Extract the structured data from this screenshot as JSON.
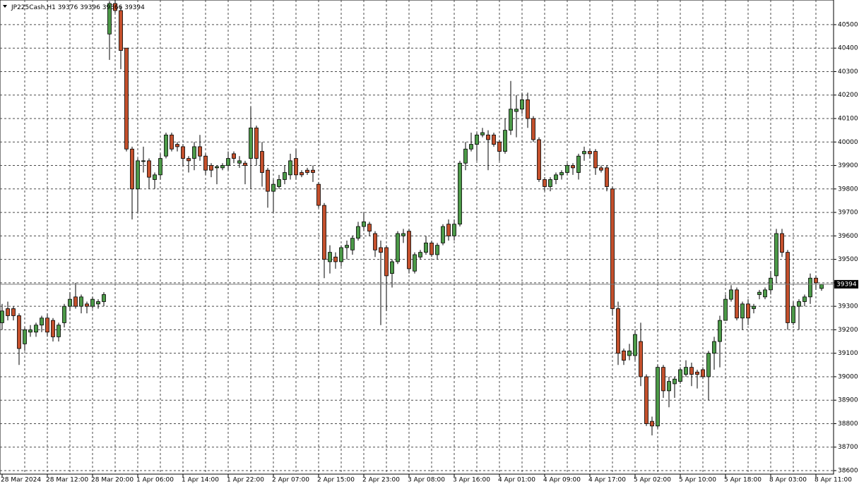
{
  "chart_data": {
    "type": "candlestick",
    "symbol": "JP225Cash,H1",
    "categories": [
      "28 Mar 2024",
      null,
      null,
      null,
      null,
      null,
      null,
      null,
      "28 Mar 12:00",
      null,
      null,
      null,
      null,
      null,
      null,
      null,
      "28 Mar 20:00",
      null,
      null,
      null,
      null,
      null,
      null,
      null,
      "1 Apr 06:00",
      null,
      null,
      null,
      null,
      null,
      null,
      null,
      "1 Apr 14:00",
      null,
      null,
      null,
      null,
      null,
      null,
      null,
      "1 Apr 22:00",
      null,
      null,
      null,
      null,
      null,
      null,
      null,
      "2 Apr 07:00",
      null,
      null,
      null,
      null,
      null,
      null,
      null,
      "2 Apr 15:00",
      null,
      null,
      null,
      null,
      null,
      null,
      null,
      "2 Apr 23:00",
      null,
      null,
      null,
      null,
      null,
      null,
      null,
      "3 Apr 08:00",
      null,
      null,
      null,
      null,
      null,
      null,
      null,
      "3 Apr 16:00",
      null,
      null,
      null,
      null,
      null,
      null,
      null,
      "4 Apr 01:00",
      null,
      null,
      null,
      null,
      null,
      null,
      null,
      "4 Apr 09:00",
      null,
      null,
      null,
      null,
      null,
      null,
      null,
      "4 Apr 17:00",
      null,
      null,
      null,
      null,
      null,
      null,
      null,
      "5 Apr 02:00",
      null,
      null,
      null,
      null,
      null,
      null,
      null,
      "5 Apr 10:00",
      null,
      null,
      null,
      null,
      null,
      null,
      null,
      "5 Apr 18:00",
      null,
      null,
      null,
      null,
      null,
      null,
      null,
      "8 Apr 03:00",
      null,
      null,
      null,
      null,
      null,
      null,
      null,
      "8 Apr 11:00",
      null
    ],
    "open": [
      39230,
      39290,
      39290,
      39260,
      39140,
      39190,
      39190,
      39220,
      39250,
      39240,
      39170,
      39230,
      39300,
      39340,
      39300,
      39310,
      39300,
      39310,
      39320,
      40460,
      40590,
      40560,
      40400,
      39970,
      39800,
      39920,
      39920,
      39840,
      39860,
      39940,
      40030,
      39990,
      39980,
      39930,
      39930,
      39980,
      39940,
      39900,
      39890,
      39890,
      39900,
      39950,
      39910,
      39910,
      39930,
      40060,
      39960,
      39880,
      39790,
      39810,
      39840,
      39860,
      39930,
      39870,
      39880,
      39880,
      39820,
      39730,
      39490,
      39510,
      39490,
      39550,
      39540,
      39590,
      39640,
      39650,
      39610,
      39550,
      39550,
      39440,
      39490,
      39600,
      39620,
      39450,
      39510,
      39530,
      39570,
      39520,
      39570,
      39650,
      39600,
      39650,
      39910,
      39970,
      39990,
      40030,
      40030,
      40030,
      40000,
      39960,
      40050,
      40130,
      40140,
      40180,
      40100,
      40010,
      39840,
      39810,
      39840,
      39860,
      39870,
      39900,
      39870,
      39950,
      39960,
      39960,
      39890,
      39890,
      39800,
      39290,
      39110,
      39090,
      39090,
      39150,
      39000,
      38810,
      38790,
      39040,
      38940,
      38970,
      38980,
      39010,
      39040,
      39020,
      39030,
      39000,
      39100,
      39150,
      39240,
      39330,
      39370,
      39250,
      39310,
      39290,
      39350,
      39340,
      39370,
      39430,
      39610,
      39530,
      39230,
      39300,
      39320,
      39340,
      39420,
      39376
    ],
    "high": [
      39310,
      39320,
      39300,
      39270,
      39210,
      39220,
      39230,
      39260,
      39270,
      39250,
      39230,
      39310,
      39360,
      39400,
      39350,
      39320,
      39340,
      39330,
      39360,
      40600,
      40605,
      40580,
      40400,
      39980,
      39930,
      39980,
      39930,
      39870,
      39950,
      40040,
      40040,
      40000,
      39990,
      39940,
      40000,
      40030,
      39950,
      39910,
      39900,
      39910,
      39960,
      39960,
      39940,
      39920,
      40150,
      40070,
      40000,
      39890,
      39840,
      39860,
      39900,
      39950,
      39970,
      39880,
      39890,
      39900,
      39830,
      39740,
      39560,
      39530,
      39560,
      39580,
      39600,
      39660,
      39700,
      39660,
      39620,
      39580,
      39560,
      39500,
      39620,
      39630,
      39630,
      39530,
      39540,
      39600,
      39580,
      39570,
      39650,
      39670,
      39670,
      39920,
      40000,
      40040,
      40040,
      40060,
      40050,
      40040,
      40010,
      40100,
      40260,
      40200,
      40210,
      40210,
      40110,
      40020,
      39850,
      39850,
      39870,
      39880,
      39910,
      39910,
      39950,
      39980,
      39970,
      39970,
      39900,
      39900,
      39810,
      39320,
      39120,
      39140,
      39200,
      39230,
      39010,
      38830,
      39050,
      39050,
      39000,
      39000,
      39040,
      39070,
      39060,
      39030,
      39040,
      39110,
      39170,
      39260,
      39350,
      39390,
      39380,
      39320,
      39330,
      39310,
      39370,
      39380,
      39450,
      39630,
      39630,
      39540,
      39320,
      39330,
      39350,
      39440,
      39430,
      39396
    ],
    "low": [
      39200,
      39240,
      39240,
      39050,
      39110,
      39170,
      39170,
      39190,
      39170,
      39150,
      39150,
      39210,
      39280,
      39290,
      39270,
      39270,
      39290,
      39290,
      39300,
      40350,
      40550,
      40310,
      39960,
      39670,
      39700,
      39870,
      39800,
      39800,
      39840,
      39930,
      39960,
      39960,
      39900,
      39870,
      39880,
      39920,
      39860,
      39850,
      39820,
      39880,
      39880,
      39910,
      39890,
      39820,
      39800,
      39900,
      39810,
      39720,
      39700,
      39800,
      39820,
      39840,
      39840,
      39850,
      39860,
      39830,
      39720,
      39420,
      39440,
      39460,
      39470,
      39500,
      39520,
      39580,
      39620,
      39600,
      39510,
      39220,
      39280,
      39380,
      39480,
      39570,
      39440,
      39440,
      39500,
      39520,
      39510,
      39500,
      39560,
      39580,
      39580,
      39640,
      39880,
      39960,
      39920,
      40020,
      39880,
      39980,
      39920,
      39950,
      40030,
      40020,
      40120,
      40060,
      40000,
      39830,
      39790,
      39790,
      39820,
      39840,
      39860,
      39860,
      39840,
      39920,
      39930,
      39860,
      39870,
      39790,
      39260,
      39050,
      39050,
      39070,
      39070,
      38960,
      38790,
      38750,
      38780,
      38910,
      38870,
      38910,
      38970,
      39000,
      38960,
      38950,
      38990,
      38900,
      39030,
      39040,
      39240,
      39320,
      39240,
      39200,
      39220,
      39270,
      39330,
      39330,
      39350,
      39400,
      39510,
      39200,
      39220,
      39200,
      39300,
      39310,
      39370,
      39366
    ],
    "close": [
      39280,
      39260,
      39260,
      39120,
      39200,
      39200,
      39220,
      39250,
      39190,
      39170,
      39220,
      39300,
      39330,
      39300,
      39340,
      39300,
      39330,
      39320,
      39350,
      40590,
      40560,
      40390,
      39970,
      39800,
      39920,
      39920,
      39850,
      39860,
      39930,
      40030,
      39970,
      39980,
      39930,
      39920,
      39980,
      39940,
      39880,
      39880,
      39895,
      39900,
      39930,
      39930,
      39920,
      39900,
      40060,
      39930,
      39870,
      39790,
      39820,
      39840,
      39870,
      39920,
      39860,
      39860,
      39870,
      39870,
      39730,
      39500,
      39530,
      39490,
      39550,
      39560,
      39590,
      39640,
      39660,
      39620,
      39540,
      39530,
      39430,
      39490,
      39610,
      39610,
      39460,
      39520,
      39530,
      39570,
      39520,
      39560,
      39640,
      39600,
      39650,
      39910,
      39970,
      39990,
      40030,
      40040,
      40010,
      39990,
      39960,
      40050,
      40140,
      40140,
      40180,
      40100,
      40010,
      39840,
      39810,
      39840,
      39860,
      39870,
      39900,
      39890,
      39940,
      39960,
      39950,
      39890,
      39880,
      39810,
      39290,
      39100,
      39070,
      39110,
      39180,
      39000,
      38800,
      38790,
      39040,
      38940,
      38980,
      38990,
      39030,
      39040,
      39010,
      39010,
      39000,
      39100,
      39150,
      39240,
      39330,
      39370,
      39250,
      39310,
      39250,
      39300,
      39360,
      39370,
      39420,
      39610,
      39530,
      39230,
      39300,
      39320,
      39340,
      39420,
      39400,
      39394
    ],
    "up_color": "#4c9a48",
    "down_color": "#c4502c",
    "ylim": [
      38585,
      40605
    ],
    "yticks": [
      38600,
      38700,
      38800,
      38900,
      39000,
      39100,
      39200,
      39300,
      39400,
      39500,
      39600,
      39700,
      39800,
      39900,
      40000,
      40100,
      40200,
      40300,
      40400,
      40500
    ],
    "grid": true
  }
}
